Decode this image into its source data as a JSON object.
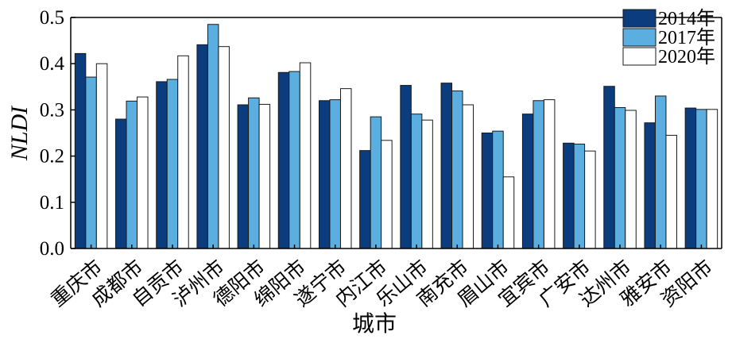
{
  "chart_data": {
    "type": "bar",
    "xlabel": "城市",
    "ylabel": "NLDI",
    "ylim": [
      0,
      0.5
    ],
    "yticks": [
      "0.0",
      "0.1",
      "0.2",
      "0.3",
      "0.4",
      "0.5"
    ],
    "categories": [
      "重庆市",
      "成都市",
      "自贡市",
      "泸州市",
      "德阳市",
      "绵阳市",
      "遂宁市",
      "内江市",
      "乐山市",
      "南充市",
      "眉山市",
      "宜宾市",
      "广安市",
      "达州市",
      "雅安市",
      "资阳市"
    ],
    "series": [
      {
        "name": "2014年",
        "color": "#0b3c7d",
        "values": [
          0.422,
          0.28,
          0.361,
          0.441,
          0.311,
          0.381,
          0.32,
          0.212,
          0.353,
          0.358,
          0.25,
          0.291,
          0.228,
          0.351,
          0.272,
          0.304
        ]
      },
      {
        "name": "2017年",
        "color": "#5aaee0",
        "values": [
          0.371,
          0.319,
          0.366,
          0.485,
          0.326,
          0.383,
          0.322,
          0.285,
          0.291,
          0.341,
          0.254,
          0.32,
          0.226,
          0.305,
          0.33,
          0.301
        ]
      },
      {
        "name": "2020年",
        "color": "#ffffff",
        "values": [
          0.4,
          0.328,
          0.417,
          0.437,
          0.312,
          0.402,
          0.346,
          0.234,
          0.278,
          0.311,
          0.155,
          0.322,
          0.211,
          0.299,
          0.245,
          0.301
        ]
      }
    ],
    "legend_position": "top-right",
    "grid": false
  }
}
